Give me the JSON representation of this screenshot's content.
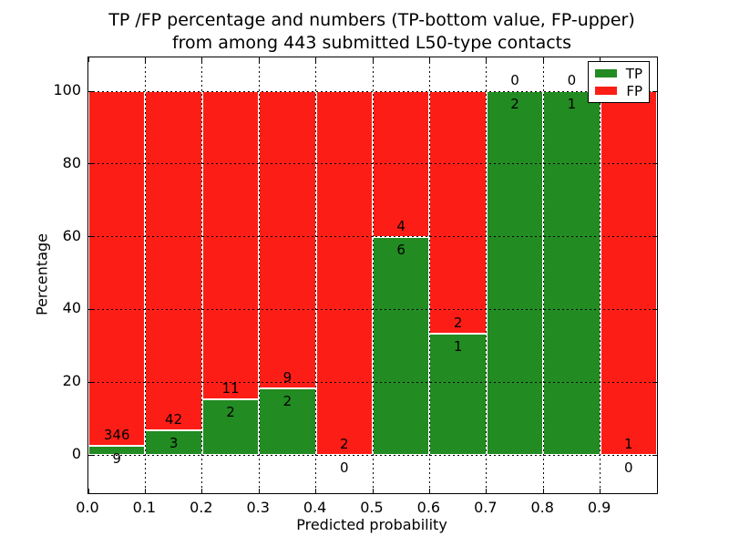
{
  "figure": {
    "background": "#ffffff"
  },
  "title": {
    "line1": "TP /FP percentage and numbers (TP-bottom value, FP-upper)",
    "line2": "from among 443 submitted L50-type contacts"
  },
  "axes": {
    "xlabel": "Predicted probability",
    "ylabel": "Percentage",
    "xtick_labels": [
      "0.0",
      "0.1",
      "0.2",
      "0.3",
      "0.4",
      "0.5",
      "0.6",
      "0.7",
      "0.8",
      "0.9"
    ],
    "ytick_labels": [
      "0",
      "20",
      "40",
      "60",
      "80",
      "100"
    ]
  },
  "legend": {
    "items": [
      {
        "label": "TP",
        "color": "#228b22"
      },
      {
        "label": "FP",
        "color": "#fc1e16"
      }
    ]
  },
  "chart_data": {
    "type": "bar",
    "stacked": true,
    "normalized": "percent-of-bin",
    "title": "TP /FP percentage and numbers (TP-bottom value, FP-upper) from among 443 submitted L50-type contacts",
    "xlabel": "Predicted probability",
    "ylabel": "Percentage",
    "total_contacts": 443,
    "bin_edges": [
      0.0,
      0.1,
      0.2,
      0.3,
      0.4,
      0.5,
      0.6,
      0.7,
      0.8,
      0.9,
      1.0
    ],
    "categories": [
      "0.0-0.1",
      "0.1-0.2",
      "0.2-0.3",
      "0.3-0.4",
      "0.4-0.5",
      "0.5-0.6",
      "0.6-0.7",
      "0.7-0.8",
      "0.8-0.9",
      "0.9-1.0"
    ],
    "series": [
      {
        "name": "TP",
        "color": "#228b22",
        "counts": [
          9,
          3,
          2,
          2,
          0,
          6,
          1,
          2,
          1,
          0
        ],
        "percent": [
          2.5,
          6.7,
          15.4,
          18.2,
          0,
          60,
          33.3,
          100,
          100,
          0
        ]
      },
      {
        "name": "FP",
        "color": "#fc1e16",
        "counts": [
          346,
          42,
          11,
          9,
          2,
          4,
          2,
          0,
          0,
          1
        ],
        "percent": [
          97.5,
          93.3,
          84.6,
          81.8,
          100,
          40,
          66.7,
          0,
          0,
          100
        ]
      }
    ],
    "yticks": [
      0,
      20,
      40,
      60,
      80,
      100
    ],
    "ylim": [
      -10.5,
      109.3
    ],
    "grid": {
      "style": "dotted",
      "color": "#000000"
    },
    "bar_edge_color": "#ffffff",
    "legend_position": "upper right"
  }
}
